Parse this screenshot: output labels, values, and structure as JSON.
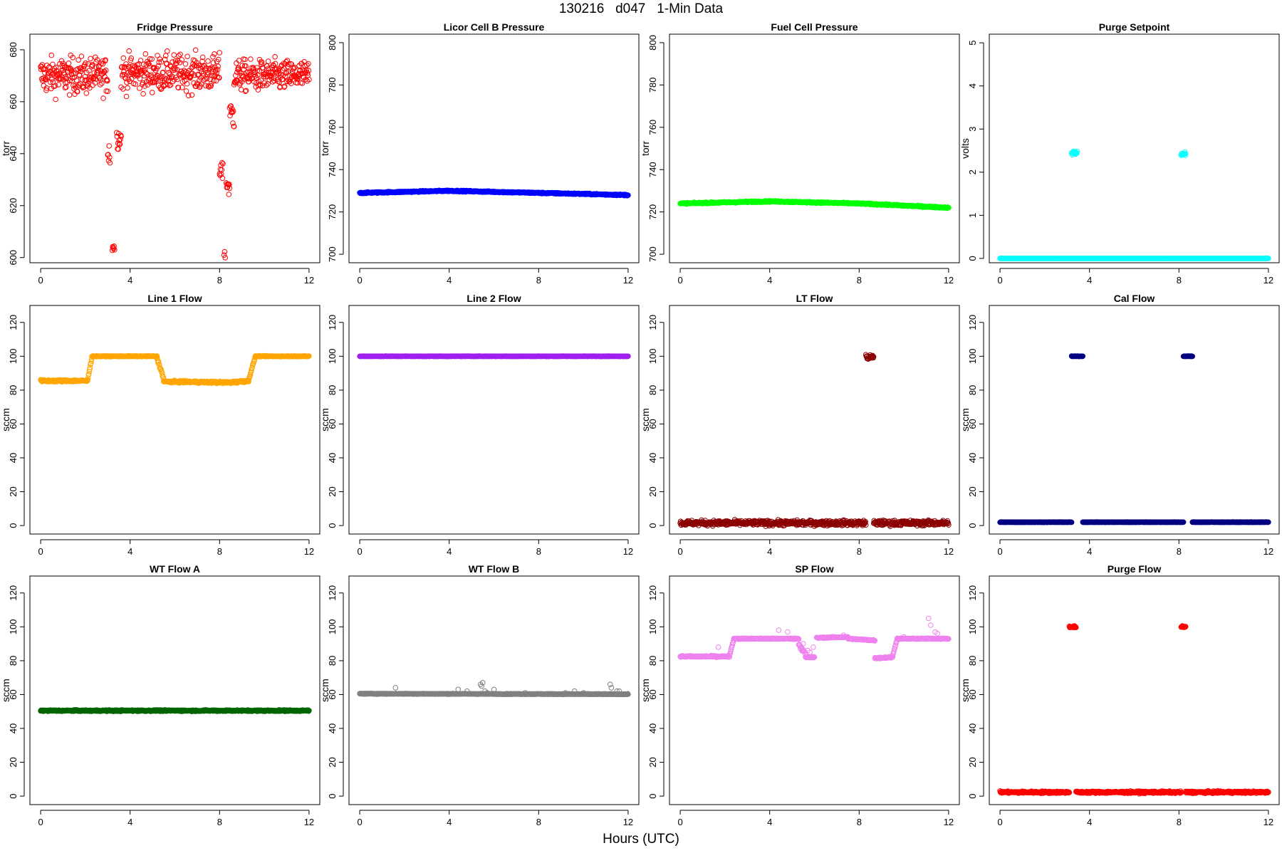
{
  "title": "130216   d047   1-Min Data",
  "xlabel": "Hours (UTC)",
  "chart_data": [
    {
      "type": "scatter",
      "title": "Fridge Pressure",
      "ylabel": "torr",
      "color": "#ff0000",
      "xlim": [
        0,
        12
      ],
      "ylim": [
        598,
        686
      ],
      "xticks": [
        0,
        4,
        8,
        12
      ],
      "yticks": [
        600,
        620,
        640,
        660,
        680
      ],
      "marker": "open-circle",
      "segments": [
        {
          "x": [
            0,
            3.0
          ],
          "y": [
            670,
            670
          ],
          "noise": 7
        },
        {
          "x": [
            3.0,
            3.1
          ],
          "y": [
            640,
            640
          ],
          "noise": 6
        },
        {
          "x": [
            3.2,
            3.3
          ],
          "y": [
            604,
            604
          ],
          "noise": 2
        },
        {
          "x": [
            3.4,
            3.6
          ],
          "y": [
            646,
            646
          ],
          "noise": 4
        },
        {
          "x": [
            3.6,
            8.0
          ],
          "y": [
            671,
            671
          ],
          "noise": 7
        },
        {
          "x": [
            8.0,
            8.15
          ],
          "y": [
            635,
            635
          ],
          "noise": 6
        },
        {
          "x": [
            8.2,
            8.25
          ],
          "y": [
            601,
            601
          ],
          "noise": 1.5
        },
        {
          "x": [
            8.3,
            8.45
          ],
          "y": [
            628,
            628
          ],
          "noise": 5
        },
        {
          "x": [
            8.45,
            8.65
          ],
          "y": [
            655,
            655
          ],
          "noise": 6
        },
        {
          "x": [
            8.65,
            12
          ],
          "y": [
            670,
            670
          ],
          "noise": 6
        }
      ]
    },
    {
      "type": "scatter",
      "title": "Licor Cell B Pressure",
      "ylabel": "torr",
      "color": "#0000ff",
      "xlim": [
        0,
        12
      ],
      "ylim": [
        696,
        804
      ],
      "xticks": [
        0,
        4,
        8,
        12
      ],
      "yticks": [
        700,
        720,
        740,
        760,
        780,
        800
      ],
      "marker": "open-circle",
      "segments": [
        {
          "x": [
            0,
            4
          ],
          "y": [
            729,
            730
          ],
          "noise": 0.3
        },
        {
          "x": [
            4,
            8
          ],
          "y": [
            730,
            729
          ],
          "noise": 0.3
        },
        {
          "x": [
            8,
            12
          ],
          "y": [
            729,
            728
          ],
          "noise": 0.3
        }
      ]
    },
    {
      "type": "scatter",
      "title": "Fuel Cell Pressure",
      "ylabel": "torr",
      "color": "#00ff00",
      "xlim": [
        0,
        12
      ],
      "ylim": [
        696,
        804
      ],
      "xticks": [
        0,
        4,
        8,
        12
      ],
      "yticks": [
        700,
        720,
        740,
        760,
        780,
        800
      ],
      "marker": "open-circle",
      "segments": [
        {
          "x": [
            0,
            4
          ],
          "y": [
            724,
            725
          ],
          "noise": 0.3
        },
        {
          "x": [
            4,
            8
          ],
          "y": [
            725,
            724
          ],
          "noise": 0.3
        },
        {
          "x": [
            8,
            12
          ],
          "y": [
            724,
            722
          ],
          "noise": 0.3
        }
      ]
    },
    {
      "type": "scatter",
      "title": "Purge Setpoint",
      "ylabel": "volts",
      "color": "#00ffff",
      "xlim": [
        0,
        12
      ],
      "ylim": [
        -0.1,
        5.2
      ],
      "xticks": [
        0,
        4,
        8,
        12
      ],
      "yticks": [
        0,
        1,
        2,
        3,
        4,
        5
      ],
      "marker": "open-circle",
      "segments": [
        {
          "x": [
            0,
            12
          ],
          "y": [
            0,
            0
          ],
          "noise": 0
        },
        {
          "x": [
            3.2,
            3.45
          ],
          "y": [
            2.45,
            2.45
          ],
          "noise": 0.05
        },
        {
          "x": [
            8.1,
            8.3
          ],
          "y": [
            2.43,
            2.43
          ],
          "noise": 0.05
        }
      ]
    },
    {
      "type": "scatter",
      "title": "Line 1 Flow",
      "ylabel": "sccm",
      "color": "#ffa500",
      "xlim": [
        0,
        12
      ],
      "ylim": [
        -5,
        130
      ],
      "xticks": [
        0,
        4,
        8,
        12
      ],
      "yticks": [
        0,
        20,
        40,
        60,
        80,
        100,
        120
      ],
      "marker": "open-circle",
      "segments": [
        {
          "x": [
            0,
            2.1
          ],
          "y": [
            85.5,
            85.5
          ],
          "noise": 0.6
        },
        {
          "x": [
            2.1,
            2.3
          ],
          "y": [
            86,
            100
          ],
          "noise": 0.5
        },
        {
          "x": [
            2.3,
            5.2
          ],
          "y": [
            100,
            100
          ],
          "noise": 0.2
        },
        {
          "x": [
            5.2,
            5.5
          ],
          "y": [
            99,
            87
          ],
          "noise": 0.8
        },
        {
          "x": [
            5.5,
            8.5
          ],
          "y": [
            85,
            84.5
          ],
          "noise": 0.6
        },
        {
          "x": [
            8.5,
            9.3
          ],
          "y": [
            84.5,
            85.5
          ],
          "noise": 0.6
        },
        {
          "x": [
            9.3,
            9.6
          ],
          "y": [
            86,
            100
          ],
          "noise": 0.5
        },
        {
          "x": [
            9.6,
            12
          ],
          "y": [
            100,
            100
          ],
          "noise": 0.2
        }
      ]
    },
    {
      "type": "scatter",
      "title": "Line 2 Flow",
      "ylabel": "sccm",
      "color": "#a020f0",
      "xlim": [
        0,
        12
      ],
      "ylim": [
        -5,
        130
      ],
      "xticks": [
        0,
        4,
        8,
        12
      ],
      "yticks": [
        0,
        20,
        40,
        60,
        80,
        100,
        120
      ],
      "marker": "open-circle",
      "segments": [
        {
          "x": [
            0,
            12
          ],
          "y": [
            100,
            100
          ],
          "noise": 0.1
        }
      ]
    },
    {
      "type": "scatter",
      "title": "LT Flow",
      "ylabel": "sccm",
      "color": "#8b0000",
      "xlim": [
        0,
        12
      ],
      "ylim": [
        -5,
        130
      ],
      "xticks": [
        0,
        4,
        8,
        12
      ],
      "yticks": [
        0,
        20,
        40,
        60,
        80,
        100,
        120
      ],
      "marker": "open-circle",
      "segments": [
        {
          "x": [
            0,
            8.3
          ],
          "y": [
            1.5,
            1.5
          ],
          "noise": 1.5
        },
        {
          "x": [
            8.3,
            8.65
          ],
          "y": [
            99.5,
            99.5
          ],
          "noise": 1.5
        },
        {
          "x": [
            8.65,
            12
          ],
          "y": [
            1.5,
            1.5
          ],
          "noise": 1.5
        }
      ]
    },
    {
      "type": "scatter",
      "title": "Cal Flow",
      "ylabel": "sccm",
      "color": "#000080",
      "xlim": [
        0,
        12
      ],
      "ylim": [
        -5,
        130
      ],
      "xticks": [
        0,
        4,
        8,
        12
      ],
      "yticks": [
        0,
        20,
        40,
        60,
        80,
        100,
        120
      ],
      "marker": "open-circle",
      "segments": [
        {
          "x": [
            0,
            3.2
          ],
          "y": [
            2,
            2
          ],
          "noise": 0.1
        },
        {
          "x": [
            3.2,
            3.7
          ],
          "y": [
            100,
            100
          ],
          "noise": 0.1
        },
        {
          "x": [
            3.7,
            8.2
          ],
          "y": [
            2,
            2
          ],
          "noise": 0.1
        },
        {
          "x": [
            8.2,
            8.6
          ],
          "y": [
            100,
            100
          ],
          "noise": 0.1
        },
        {
          "x": [
            8.6,
            12
          ],
          "y": [
            2,
            2
          ],
          "noise": 0.1
        }
      ]
    },
    {
      "type": "scatter",
      "title": "WT Flow A",
      "ylabel": "sccm",
      "color": "#006400",
      "xlim": [
        0,
        12
      ],
      "ylim": [
        -5,
        130
      ],
      "xticks": [
        0,
        4,
        8,
        12
      ],
      "yticks": [
        0,
        20,
        40,
        60,
        80,
        100,
        120
      ],
      "marker": "open-circle",
      "segments": [
        {
          "x": [
            0,
            12
          ],
          "y": [
            50.5,
            50.5
          ],
          "noise": 0.4
        }
      ]
    },
    {
      "type": "scatter",
      "title": "WT Flow B",
      "ylabel": "sccm",
      "color": "#808080",
      "xlim": [
        0,
        12
      ],
      "ylim": [
        -5,
        130
      ],
      "xticks": [
        0,
        4,
        8,
        12
      ],
      "yticks": [
        0,
        20,
        40,
        60,
        80,
        100,
        120
      ],
      "marker": "open-circle",
      "segments": [
        {
          "x": [
            0,
            12
          ],
          "y": [
            60.5,
            60.2
          ],
          "noise": 0.2
        }
      ],
      "outliers": {
        "x": [
          1.6,
          4.4,
          4.8,
          5.4,
          5.45,
          5.5,
          5.6,
          5.7,
          6.0,
          7.4,
          9.2,
          9.6,
          10,
          11.2,
          11.25,
          11.5,
          11.6
        ],
        "y": [
          64,
          63,
          62,
          66,
          65,
          67,
          62,
          61,
          63,
          61,
          61,
          62,
          61,
          66,
          64,
          62,
          62
        ]
      }
    },
    {
      "type": "scatter",
      "title": "SP Flow",
      "ylabel": "sccm",
      "color": "#ee82ee",
      "xlim": [
        0,
        12
      ],
      "ylim": [
        -5,
        130
      ],
      "xticks": [
        0,
        4,
        8,
        12
      ],
      "yticks": [
        0,
        20,
        40,
        60,
        80,
        100,
        120
      ],
      "marker": "open-circle",
      "segments": [
        {
          "x": [
            0,
            2.2
          ],
          "y": [
            82.5,
            82.5
          ],
          "noise": 0.4
        },
        {
          "x": [
            2.2,
            2.4
          ],
          "y": [
            83,
            93
          ],
          "noise": 0.4
        },
        {
          "x": [
            2.4,
            5.3
          ],
          "y": [
            93,
            93
          ],
          "noise": 0.3
        },
        {
          "x": [
            5.3,
            5.6
          ],
          "y": [
            90,
            84
          ],
          "noise": 1.5
        },
        {
          "x": [
            5.6,
            6.0
          ],
          "y": [
            82,
            82
          ],
          "noise": 0.4
        },
        {
          "x": [
            6.1,
            7.5
          ],
          "y": [
            93.5,
            94
          ],
          "noise": 0.3
        },
        {
          "x": [
            7.5,
            8.7
          ],
          "y": [
            93,
            92
          ],
          "noise": 0.3
        },
        {
          "x": [
            8.7,
            9.5
          ],
          "y": [
            81.5,
            82
          ],
          "noise": 0.4
        },
        {
          "x": [
            9.5,
            9.7
          ],
          "y": [
            83,
            93
          ],
          "noise": 0.4
        },
        {
          "x": [
            9.7,
            12
          ],
          "y": [
            93,
            93
          ],
          "noise": 0.3
        }
      ],
      "outliers": {
        "x": [
          1.7,
          4.4,
          4.8,
          5.45,
          5.5,
          5.7,
          5.8,
          5.95,
          7.3,
          9.8,
          10.0,
          11.1,
          11.2,
          11.4,
          11.5
        ],
        "y": [
          88,
          98,
          97,
          87,
          90,
          86,
          85,
          88,
          95,
          93,
          94,
          105,
          101,
          97,
          96
        ]
      }
    },
    {
      "type": "scatter",
      "title": "Purge Flow",
      "ylabel": "sccm",
      "color": "#ff0000",
      "xlim": [
        0,
        12
      ],
      "ylim": [
        -5,
        130
      ],
      "xticks": [
        0,
        4,
        8,
        12
      ],
      "yticks": [
        0,
        20,
        40,
        60,
        80,
        100,
        120
      ],
      "marker": "open-circle",
      "segments": [
        {
          "x": [
            0,
            3.1
          ],
          "y": [
            2.3,
            2.3
          ],
          "noise": 0.6
        },
        {
          "x": [
            3.1,
            3.4
          ],
          "y": [
            100,
            100
          ],
          "noise": 0.5
        },
        {
          "x": [
            3.4,
            8.1
          ],
          "y": [
            2.3,
            2.3
          ],
          "noise": 0.6
        },
        {
          "x": [
            8.1,
            8.3
          ],
          "y": [
            100,
            100
          ],
          "noise": 0.5
        },
        {
          "x": [
            8.3,
            12
          ],
          "y": [
            2.3,
            2.3
          ],
          "noise": 0.6
        }
      ]
    }
  ]
}
